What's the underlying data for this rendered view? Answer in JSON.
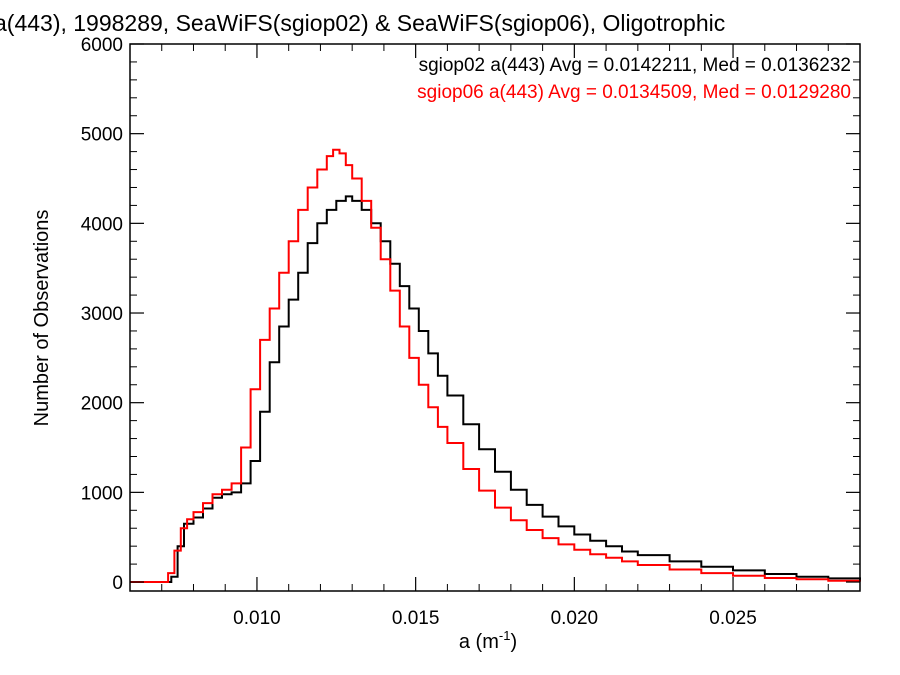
{
  "chart_data": {
    "type": "line",
    "style": "step-histogram",
    "title": "a(443), 1998289, SeaWiFS(sgiop02) & SeaWiFS(sgiop06), Oligotrophic",
    "xlabel_base": "a (m",
    "xlabel_sup": "-1",
    "xlabel_close": ")",
    "ylabel": "Number of Observations",
    "xlim": [
      0.006,
      0.029
    ],
    "ylim": [
      -100,
      6000
    ],
    "xticks": [
      0.01,
      0.015,
      0.02,
      0.025
    ],
    "xtick_labels": [
      "0.010",
      "0.015",
      "0.020",
      "0.025"
    ],
    "yticks": [
      0,
      1000,
      2000,
      3000,
      4000,
      5000,
      6000
    ],
    "ytick_labels": [
      "0",
      "1000",
      "2000",
      "3000",
      "4000",
      "5000",
      "6000"
    ],
    "grid": false,
    "legend_position": "top-right",
    "series": [
      {
        "name": "sgiop02 a(443) Avg = 0.0142211, Med = 0.0136232",
        "color": "#000000",
        "x": [
          0.006,
          0.007,
          0.0073,
          0.0075,
          0.0077,
          0.008,
          0.0083,
          0.0086,
          0.0089,
          0.0092,
          0.0095,
          0.0098,
          0.0101,
          0.0104,
          0.0107,
          0.011,
          0.0113,
          0.0116,
          0.0119,
          0.0122,
          0.0125,
          0.0128,
          0.013,
          0.0133,
          0.0136,
          0.0139,
          0.0142,
          0.0145,
          0.0148,
          0.0151,
          0.0154,
          0.0157,
          0.016,
          0.0165,
          0.017,
          0.0175,
          0.018,
          0.0185,
          0.019,
          0.0195,
          0.02,
          0.0205,
          0.021,
          0.0215,
          0.022,
          0.023,
          0.024,
          0.025,
          0.026,
          0.027,
          0.028,
          0.029
        ],
        "values": [
          0,
          0,
          60,
          400,
          650,
          720,
          820,
          940,
          980,
          1000,
          1100,
          1350,
          1900,
          2450,
          2850,
          3150,
          3450,
          3780,
          4000,
          4150,
          4250,
          4300,
          4250,
          4150,
          4000,
          3800,
          3550,
          3300,
          3050,
          2800,
          2550,
          2300,
          2080,
          1760,
          1480,
          1230,
          1030,
          860,
          730,
          620,
          530,
          460,
          400,
          340,
          300,
          230,
          170,
          130,
          90,
          60,
          40,
          20
        ]
      },
      {
        "name": "sgiop06 a(443) Avg = 0.0134509, Med = 0.0129280",
        "color": "#ff0000",
        "x": [
          0.006,
          0.007,
          0.0072,
          0.0074,
          0.0076,
          0.0078,
          0.008,
          0.0083,
          0.0086,
          0.0089,
          0.0092,
          0.0095,
          0.0098,
          0.0101,
          0.0104,
          0.0107,
          0.011,
          0.0113,
          0.0116,
          0.0119,
          0.0122,
          0.0124,
          0.0126,
          0.0128,
          0.013,
          0.0133,
          0.0136,
          0.0139,
          0.0142,
          0.0145,
          0.0148,
          0.0151,
          0.0154,
          0.0157,
          0.016,
          0.0165,
          0.017,
          0.0175,
          0.018,
          0.0185,
          0.019,
          0.0195,
          0.02,
          0.0205,
          0.021,
          0.0215,
          0.022,
          0.023,
          0.024,
          0.025,
          0.026,
          0.027,
          0.028,
          0.029
        ],
        "values": [
          0,
          0,
          100,
          350,
          600,
          700,
          780,
          880,
          980,
          1030,
          1100,
          1500,
          2150,
          2700,
          3050,
          3450,
          3800,
          4150,
          4400,
          4600,
          4750,
          4820,
          4780,
          4650,
          4500,
          4250,
          3950,
          3600,
          3250,
          2850,
          2500,
          2200,
          1950,
          1730,
          1550,
          1260,
          1020,
          830,
          690,
          580,
          490,
          420,
          360,
          310,
          270,
          230,
          190,
          140,
          100,
          70,
          45,
          30,
          15,
          5
        ]
      }
    ]
  }
}
